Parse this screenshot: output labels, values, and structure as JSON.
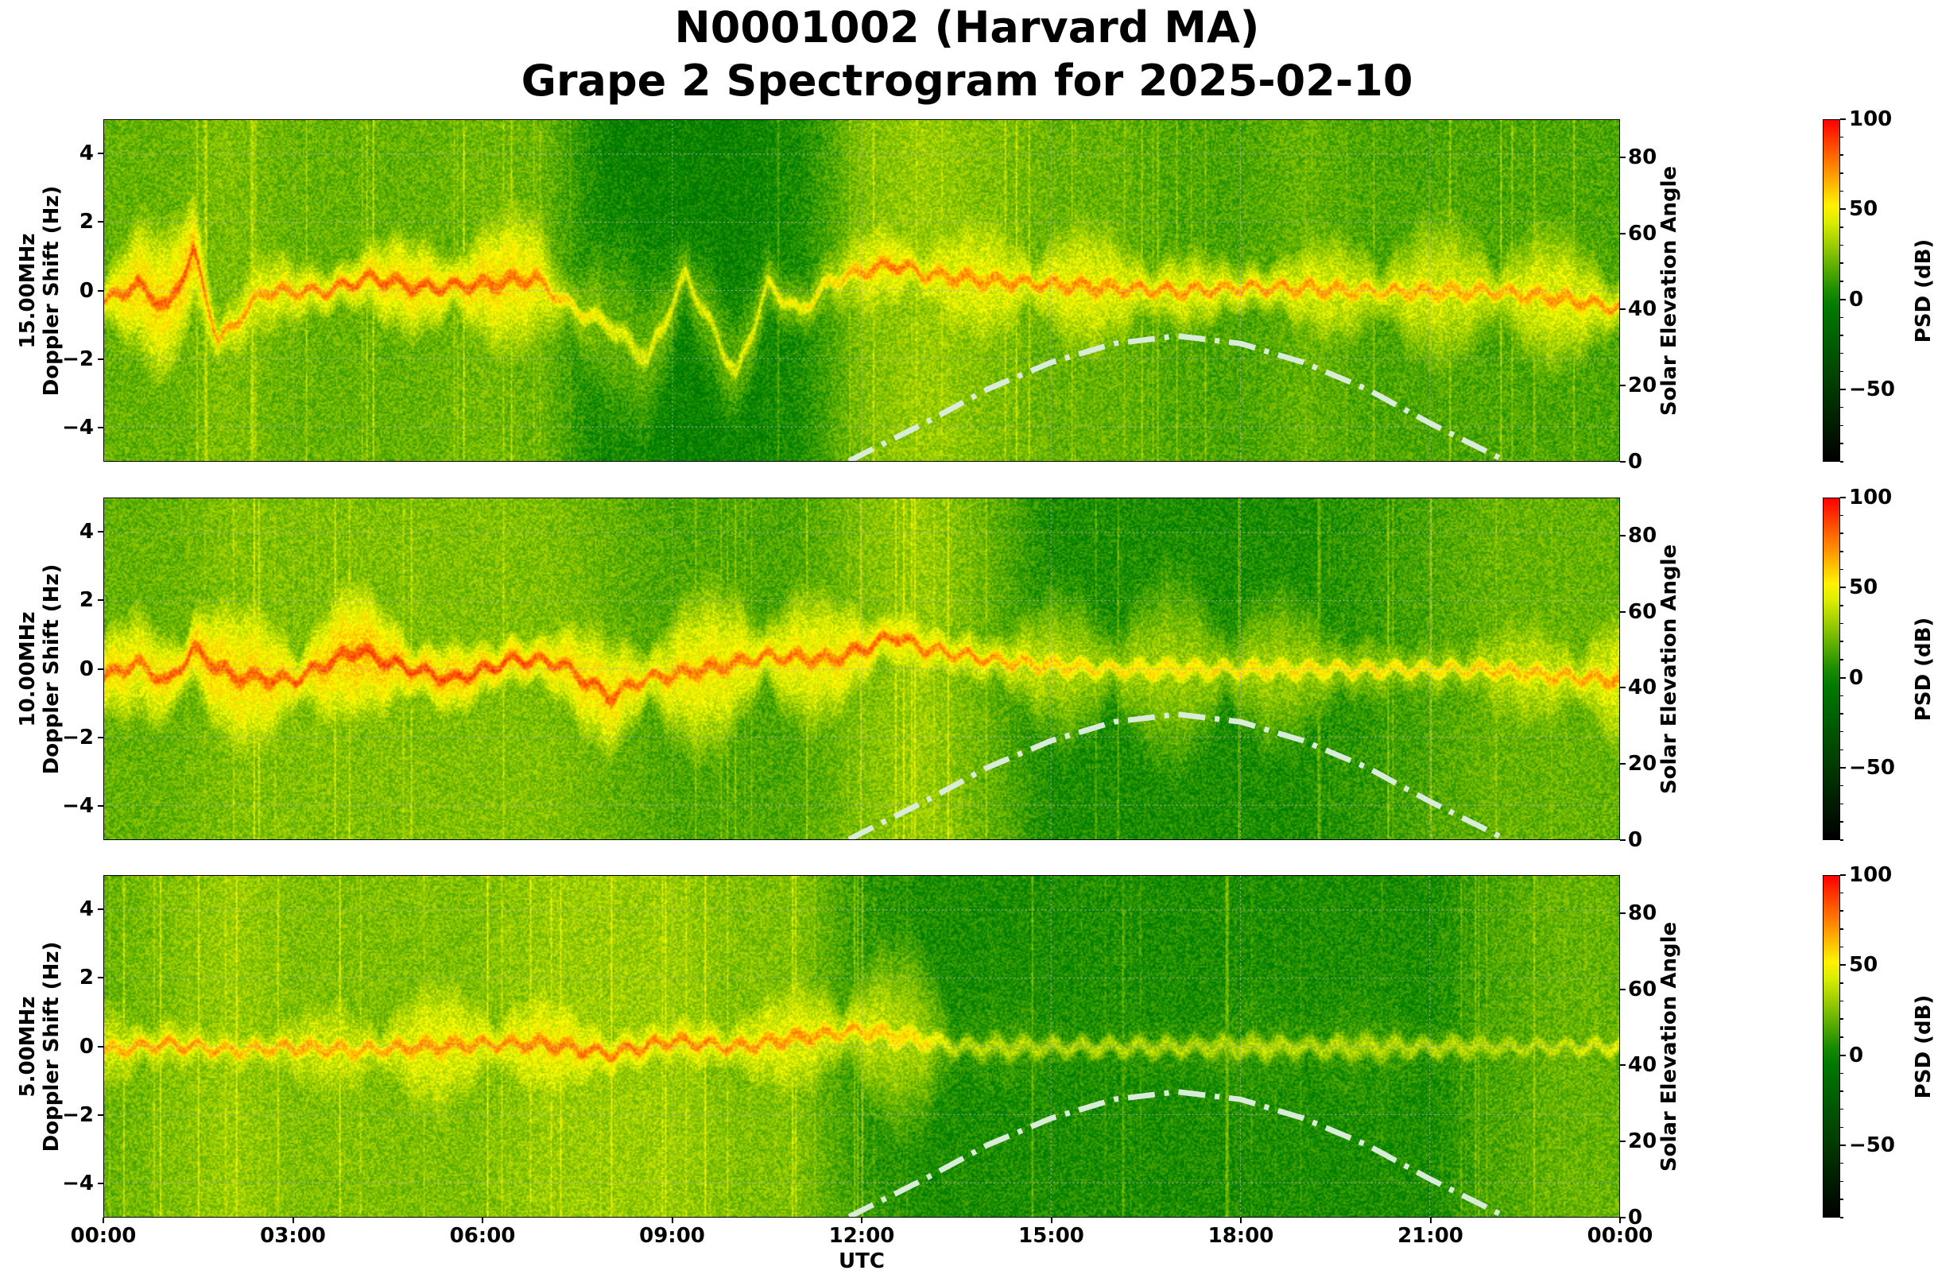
{
  "title": {
    "line1": "N0001002 (Harvard MA)",
    "line2": "Grape 2 Spectrogram for 2025-02-10"
  },
  "colors": {
    "background": "#ffffff",
    "base_green": "#007f00",
    "colormap": [
      "#000000",
      "#007f00",
      "#ffff00",
      "#ff0000"
    ],
    "solar_curve": "#d9ecd9",
    "grid": "#b0b0b0"
  },
  "x_axis": {
    "label": "UTC",
    "ticks": [
      "00:00",
      "03:00",
      "06:00",
      "09:00",
      "12:00",
      "15:00",
      "18:00",
      "21:00",
      "00:00"
    ],
    "range_hours": [
      0,
      24
    ]
  },
  "left_axis": {
    "ticks": [
      "4",
      "2",
      "0",
      "−2",
      "−4"
    ],
    "range": [
      -5,
      5
    ]
  },
  "right_axis": {
    "label": "Solar Elevation Angle",
    "ticks": [
      "80",
      "60",
      "40",
      "20",
      "0"
    ],
    "range": [
      0,
      90
    ]
  },
  "colorbar": {
    "label": "PSD (dB)",
    "ticks": [
      "100",
      "50",
      "0",
      "−50"
    ],
    "range": [
      -90,
      100
    ]
  },
  "panels": [
    {
      "freq_label": "15.00MHz",
      "ylabel": "Doppler Shift (Hz)"
    },
    {
      "freq_label": "10.00MHz",
      "ylabel": "Doppler Shift (Hz)"
    },
    {
      "freq_label": "5.00MHz",
      "ylabel": "Doppler Shift (Hz)"
    }
  ],
  "chart_data": [
    {
      "type": "heatmap",
      "title": "N0001002 (Harvard MA) Grape 2 Spectrogram for 2025-02-10",
      "subplot": "15.00MHz",
      "xlabel": "UTC",
      "ylabel": "15.00MHz Doppler Shift (Hz)",
      "y2label": "Solar Elevation Angle",
      "colorbar_label": "PSD (dB)",
      "x_range_hours": [
        0,
        24
      ],
      "ylim": [
        -5,
        5
      ],
      "y2lim": [
        0,
        90
      ],
      "clim": [
        -90,
        100
      ],
      "grid": true,
      "doppler_trace": {
        "hours": [
          0,
          0.5,
          1.0,
          1.4,
          1.8,
          2.5,
          3.5,
          4.2,
          5.0,
          6.0,
          6.8,
          7.4,
          8.0,
          8.6,
          9.2,
          9.6,
          10.0,
          10.5,
          11.0,
          11.5,
          12.0,
          12.5,
          13.0,
          14.0,
          15.0,
          16.0,
          17.0,
          18.0,
          19.0,
          20.0,
          21.0,
          22.0,
          23.0,
          24.0
        ],
        "hz": [
          -0.3,
          0.2,
          -0.5,
          1.2,
          -1.5,
          0.0,
          0.0,
          0.4,
          0.1,
          0.2,
          0.4,
          -0.5,
          -1.0,
          -2.0,
          0.5,
          -1.0,
          -2.5,
          0.2,
          -0.6,
          0.3,
          0.6,
          0.8,
          0.5,
          0.3,
          0.2,
          0.1,
          0.0,
          0.1,
          0.1,
          0.0,
          0.0,
          0.0,
          -0.2,
          -0.5
        ],
        "peak_db": [
          75,
          80,
          80,
          85,
          70,
          70,
          75,
          80,
          80,
          80,
          75,
          55,
          45,
          45,
          50,
          45,
          45,
          50,
          50,
          55,
          70,
          75,
          70,
          70,
          70,
          70,
          70,
          70,
          70,
          65,
          65,
          65,
          70,
          70
        ]
      },
      "background_db_by_hour": [
        20,
        20,
        25,
        20,
        20,
        20,
        22,
        20,
        0,
        0,
        0,
        5,
        25,
        30,
        25,
        20,
        20,
        15,
        15,
        20,
        15,
        15,
        15,
        15
      ],
      "solar_elevation": {
        "hours": [
          11.8,
          13,
          14,
          15,
          16,
          17,
          18,
          19,
          20,
          21,
          22.2
        ],
        "deg": [
          0,
          10,
          19,
          26,
          31,
          33,
          31,
          26,
          19,
          10,
          0
        ]
      }
    },
    {
      "type": "heatmap",
      "subplot": "10.00MHz",
      "xlabel": "UTC",
      "ylabel": "10.00MHz Doppler Shift (Hz)",
      "y2label": "Solar Elevation Angle",
      "colorbar_label": "PSD (dB)",
      "x_range_hours": [
        0,
        24
      ],
      "ylim": [
        -5,
        5
      ],
      "y2lim": [
        0,
        90
      ],
      "clim": [
        -90,
        100
      ],
      "grid": true,
      "doppler_trace": {
        "hours": [
          0,
          0.5,
          1.0,
          1.4,
          2.0,
          3.0,
          4.0,
          4.5,
          5.5,
          6.5,
          7.2,
          8.0,
          8.5,
          9.5,
          10.5,
          11.5,
          12.0,
          12.5,
          13.0,
          14.0,
          15.0,
          16.0,
          17.0,
          18.0,
          19.0,
          20.0,
          21.0,
          22.0,
          23.0,
          24.0
        ],
        "hz": [
          -0.2,
          0.2,
          -0.4,
          0.6,
          -0.2,
          -0.3,
          0.6,
          0.2,
          -0.3,
          0.3,
          0.2,
          -0.8,
          -0.3,
          0.0,
          0.4,
          0.3,
          0.6,
          1.0,
          0.6,
          0.3,
          0.1,
          0.0,
          0.0,
          0.0,
          0.0,
          0.0,
          0.0,
          0.0,
          -0.2,
          -0.3
        ],
        "peak_db": [
          80,
          75,
          80,
          85,
          80,
          80,
          85,
          85,
          85,
          85,
          80,
          80,
          75,
          75,
          75,
          75,
          80,
          80,
          75,
          70,
          60,
          55,
          55,
          55,
          55,
          55,
          55,
          60,
          65,
          70
        ]
      },
      "background_db_by_hour": [
        20,
        20,
        25,
        25,
        25,
        25,
        25,
        25,
        20,
        15,
        15,
        15,
        25,
        30,
        20,
        5,
        5,
        5,
        5,
        5,
        10,
        15,
        20,
        20
      ],
      "solar_elevation": {
        "hours": [
          11.8,
          13,
          14,
          15,
          16,
          17,
          18,
          19,
          20,
          21,
          22.2
        ],
        "deg": [
          0,
          10,
          19,
          26,
          31,
          33,
          31,
          26,
          19,
          10,
          0
        ]
      }
    },
    {
      "type": "heatmap",
      "subplot": "5.00MHz",
      "xlabel": "UTC",
      "ylabel": "5.00MHz Doppler Shift (Hz)",
      "y2label": "Solar Elevation Angle",
      "colorbar_label": "PSD (dB)",
      "x_range_hours": [
        0,
        24
      ],
      "ylim": [
        -5,
        5
      ],
      "y2lim": [
        0,
        90
      ],
      "clim": [
        -90,
        100
      ],
      "grid": true,
      "doppler_trace": {
        "hours": [
          0,
          1.0,
          2.0,
          3.0,
          4.0,
          5.0,
          6.0,
          7.0,
          8.0,
          9.0,
          10.0,
          11.0,
          12.0,
          13.0,
          13.5,
          22.5,
          24.0
        ],
        "hz": [
          -0.1,
          0.1,
          -0.1,
          0.0,
          -0.1,
          0.0,
          0.1,
          0.1,
          -0.2,
          0.2,
          0.0,
          0.3,
          0.5,
          0.2,
          0.0,
          0.0,
          0.0
        ],
        "peak_db": [
          65,
          70,
          65,
          65,
          65,
          70,
          70,
          75,
          75,
          75,
          70,
          70,
          65,
          55,
          35,
          35,
          45
        ]
      },
      "background_db_by_hour": [
        20,
        25,
        30,
        25,
        25,
        25,
        25,
        30,
        30,
        30,
        25,
        25,
        10,
        5,
        5,
        5,
        5,
        5,
        5,
        5,
        5,
        5,
        15,
        20
      ],
      "solar_elevation": {
        "hours": [
          11.8,
          13,
          14,
          15,
          16,
          17,
          18,
          19,
          20,
          21,
          22.2
        ],
        "deg": [
          0,
          10,
          19,
          26,
          31,
          33,
          31,
          26,
          19,
          10,
          0
        ]
      }
    }
  ]
}
